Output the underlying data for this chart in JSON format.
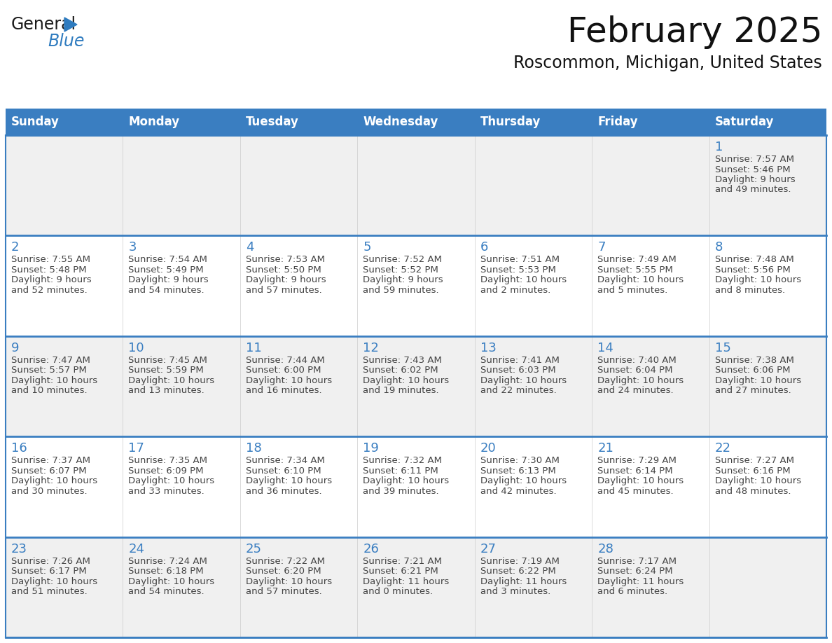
{
  "title": "February 2025",
  "subtitle": "Roscommon, Michigan, United States",
  "header_bg": "#3A7EC1",
  "header_text_color": "#FFFFFF",
  "cell_bg_light": "#F0F0F0",
  "cell_bg_white": "#FFFFFF",
  "border_color": "#3A7EC1",
  "day_number_color": "#3A7EC1",
  "text_color": "#444444",
  "weekdays": [
    "Sunday",
    "Monday",
    "Tuesday",
    "Wednesday",
    "Thursday",
    "Friday",
    "Saturday"
  ],
  "calendar": [
    [
      {
        "day": null,
        "info": ""
      },
      {
        "day": null,
        "info": ""
      },
      {
        "day": null,
        "info": ""
      },
      {
        "day": null,
        "info": ""
      },
      {
        "day": null,
        "info": ""
      },
      {
        "day": null,
        "info": ""
      },
      {
        "day": 1,
        "info": "Sunrise: 7:57 AM\nSunset: 5:46 PM\nDaylight: 9 hours\nand 49 minutes."
      }
    ],
    [
      {
        "day": 2,
        "info": "Sunrise: 7:55 AM\nSunset: 5:48 PM\nDaylight: 9 hours\nand 52 minutes."
      },
      {
        "day": 3,
        "info": "Sunrise: 7:54 AM\nSunset: 5:49 PM\nDaylight: 9 hours\nand 54 minutes."
      },
      {
        "day": 4,
        "info": "Sunrise: 7:53 AM\nSunset: 5:50 PM\nDaylight: 9 hours\nand 57 minutes."
      },
      {
        "day": 5,
        "info": "Sunrise: 7:52 AM\nSunset: 5:52 PM\nDaylight: 9 hours\nand 59 minutes."
      },
      {
        "day": 6,
        "info": "Sunrise: 7:51 AM\nSunset: 5:53 PM\nDaylight: 10 hours\nand 2 minutes."
      },
      {
        "day": 7,
        "info": "Sunrise: 7:49 AM\nSunset: 5:55 PM\nDaylight: 10 hours\nand 5 minutes."
      },
      {
        "day": 8,
        "info": "Sunrise: 7:48 AM\nSunset: 5:56 PM\nDaylight: 10 hours\nand 8 minutes."
      }
    ],
    [
      {
        "day": 9,
        "info": "Sunrise: 7:47 AM\nSunset: 5:57 PM\nDaylight: 10 hours\nand 10 minutes."
      },
      {
        "day": 10,
        "info": "Sunrise: 7:45 AM\nSunset: 5:59 PM\nDaylight: 10 hours\nand 13 minutes."
      },
      {
        "day": 11,
        "info": "Sunrise: 7:44 AM\nSunset: 6:00 PM\nDaylight: 10 hours\nand 16 minutes."
      },
      {
        "day": 12,
        "info": "Sunrise: 7:43 AM\nSunset: 6:02 PM\nDaylight: 10 hours\nand 19 minutes."
      },
      {
        "day": 13,
        "info": "Sunrise: 7:41 AM\nSunset: 6:03 PM\nDaylight: 10 hours\nand 22 minutes."
      },
      {
        "day": 14,
        "info": "Sunrise: 7:40 AM\nSunset: 6:04 PM\nDaylight: 10 hours\nand 24 minutes."
      },
      {
        "day": 15,
        "info": "Sunrise: 7:38 AM\nSunset: 6:06 PM\nDaylight: 10 hours\nand 27 minutes."
      }
    ],
    [
      {
        "day": 16,
        "info": "Sunrise: 7:37 AM\nSunset: 6:07 PM\nDaylight: 10 hours\nand 30 minutes."
      },
      {
        "day": 17,
        "info": "Sunrise: 7:35 AM\nSunset: 6:09 PM\nDaylight: 10 hours\nand 33 minutes."
      },
      {
        "day": 18,
        "info": "Sunrise: 7:34 AM\nSunset: 6:10 PM\nDaylight: 10 hours\nand 36 minutes."
      },
      {
        "day": 19,
        "info": "Sunrise: 7:32 AM\nSunset: 6:11 PM\nDaylight: 10 hours\nand 39 minutes."
      },
      {
        "day": 20,
        "info": "Sunrise: 7:30 AM\nSunset: 6:13 PM\nDaylight: 10 hours\nand 42 minutes."
      },
      {
        "day": 21,
        "info": "Sunrise: 7:29 AM\nSunset: 6:14 PM\nDaylight: 10 hours\nand 45 minutes."
      },
      {
        "day": 22,
        "info": "Sunrise: 7:27 AM\nSunset: 6:16 PM\nDaylight: 10 hours\nand 48 minutes."
      }
    ],
    [
      {
        "day": 23,
        "info": "Sunrise: 7:26 AM\nSunset: 6:17 PM\nDaylight: 10 hours\nand 51 minutes."
      },
      {
        "day": 24,
        "info": "Sunrise: 7:24 AM\nSunset: 6:18 PM\nDaylight: 10 hours\nand 54 minutes."
      },
      {
        "day": 25,
        "info": "Sunrise: 7:22 AM\nSunset: 6:20 PM\nDaylight: 10 hours\nand 57 minutes."
      },
      {
        "day": 26,
        "info": "Sunrise: 7:21 AM\nSunset: 6:21 PM\nDaylight: 11 hours\nand 0 minutes."
      },
      {
        "day": 27,
        "info": "Sunrise: 7:19 AM\nSunset: 6:22 PM\nDaylight: 11 hours\nand 3 minutes."
      },
      {
        "day": 28,
        "info": "Sunrise: 7:17 AM\nSunset: 6:24 PM\nDaylight: 11 hours\nand 6 minutes."
      },
      {
        "day": null,
        "info": ""
      }
    ]
  ],
  "logo_general_color": "#1a1a1a",
  "logo_blue_color": "#2E7BBF",
  "logo_triangle_color": "#2E7BBF",
  "title_fontsize": 36,
  "subtitle_fontsize": 17,
  "header_fontsize": 12,
  "day_num_fontsize": 13,
  "info_fontsize": 9.5
}
